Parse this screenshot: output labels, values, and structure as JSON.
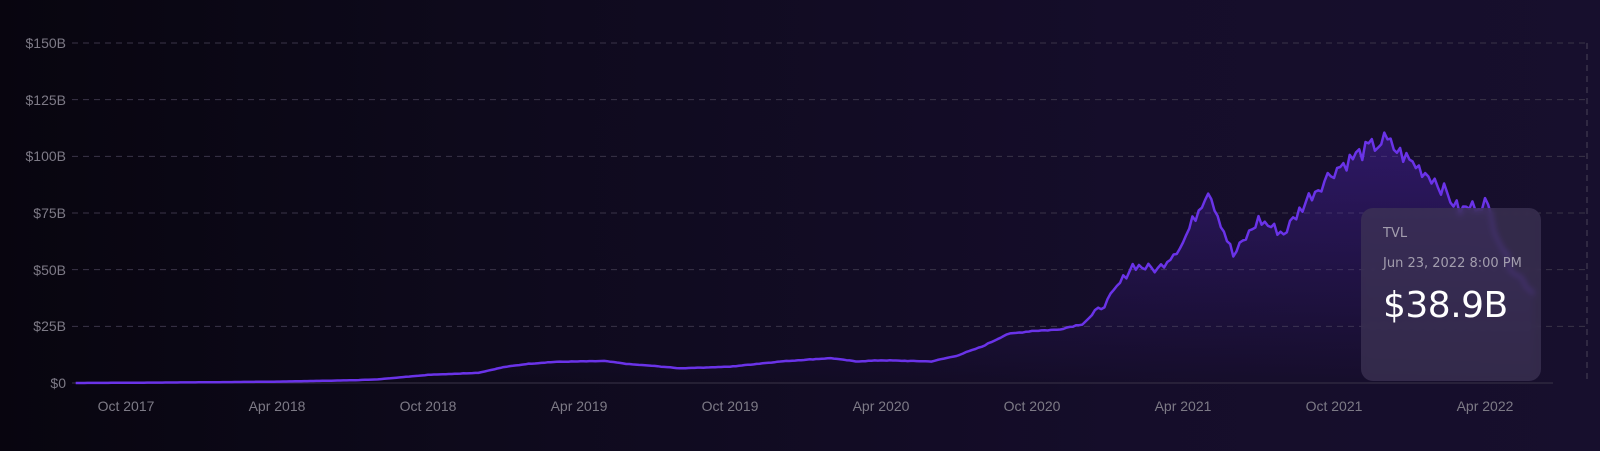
{
  "chart_data": {
    "type": "area",
    "title": "",
    "xlabel": "",
    "ylabel": "",
    "series_name": "TVL",
    "line_color": "#6a33e8",
    "grid": true,
    "ylim": [
      0,
      150
    ],
    "y_unit": "B USD",
    "y_ticks": [
      "$0",
      "$25B",
      "$50B",
      "$75B",
      "$100B",
      "$125B",
      "$150B"
    ],
    "y_tick_values": [
      0,
      25,
      50,
      75,
      100,
      125,
      150
    ],
    "x_ticks": [
      "Oct 2017",
      "Apr 2018",
      "Oct 2018",
      "Apr 2019",
      "Oct 2019",
      "Apr 2020",
      "Oct 2020",
      "Apr 2021",
      "Oct 2021",
      "Apr 2022"
    ],
    "points": [
      {
        "date": "2017-08",
        "value": 0.0
      },
      {
        "date": "2017-10",
        "value": 0.1
      },
      {
        "date": "2018-01",
        "value": 0.3
      },
      {
        "date": "2018-04",
        "value": 0.6
      },
      {
        "date": "2018-07",
        "value": 1.2
      },
      {
        "date": "2018-08",
        "value": 1.6
      },
      {
        "date": "2018-09",
        "value": 2.6
      },
      {
        "date": "2018-10",
        "value": 3.6
      },
      {
        "date": "2018-12",
        "value": 4.5
      },
      {
        "date": "2019-01",
        "value": 7.0
      },
      {
        "date": "2019-02",
        "value": 8.5
      },
      {
        "date": "2019-03",
        "value": 9.3
      },
      {
        "date": "2019-05",
        "value": 9.7
      },
      {
        "date": "2019-06",
        "value": 8.3
      },
      {
        "date": "2019-07",
        "value": 7.5
      },
      {
        "date": "2019-08",
        "value": 6.5
      },
      {
        "date": "2019-10",
        "value": 7.2
      },
      {
        "date": "2019-12",
        "value": 9.5
      },
      {
        "date": "2020-02",
        "value": 11.0
      },
      {
        "date": "2020-03",
        "value": 9.5
      },
      {
        "date": "2020-04",
        "value": 10.0
      },
      {
        "date": "2020-06",
        "value": 9.5
      },
      {
        "date": "2020-07",
        "value": 12.0
      },
      {
        "date": "2020-08",
        "value": 16.0
      },
      {
        "date": "2020-09",
        "value": 21.5
      },
      {
        "date": "2020-10",
        "value": 23.0
      },
      {
        "date": "2020-11",
        "value": 23.5
      },
      {
        "date": "2020-12",
        "value": 26.0
      },
      {
        "date": "2021-01",
        "value": 36.0
      },
      {
        "date": "2021-02",
        "value": 52.0
      },
      {
        "date": "2021-03",
        "value": 50.0
      },
      {
        "date": "2021-04",
        "value": 62.0
      },
      {
        "date": "2021-05",
        "value": 86.0
      },
      {
        "date": "2021-06",
        "value": 56.0
      },
      {
        "date": "2021-07",
        "value": 72.0
      },
      {
        "date": "2021-08",
        "value": 66.0
      },
      {
        "date": "2021-09",
        "value": 82.0
      },
      {
        "date": "2021-10",
        "value": 94.0
      },
      {
        "date": "2021-11",
        "value": 101.0
      },
      {
        "date": "2021-12",
        "value": 107.0
      },
      {
        "date": "2022-01",
        "value": 98.0
      },
      {
        "date": "2022-02",
        "value": 90.0
      },
      {
        "date": "2022-03",
        "value": 76.0
      },
      {
        "date": "2022-04",
        "value": 80.0
      },
      {
        "date": "2022-05",
        "value": 52.0
      },
      {
        "date": "2022-06",
        "value": 38.9
      }
    ]
  },
  "tooltip": {
    "label": "TVL",
    "date": "Jun 23, 2022 8:00 PM",
    "value": "$38.9B"
  },
  "colors": {
    "line": "#6a33e8",
    "grid": "#3a3448",
    "tick_text": "#7d7a86",
    "tooltip_bg": "#3e3456"
  }
}
